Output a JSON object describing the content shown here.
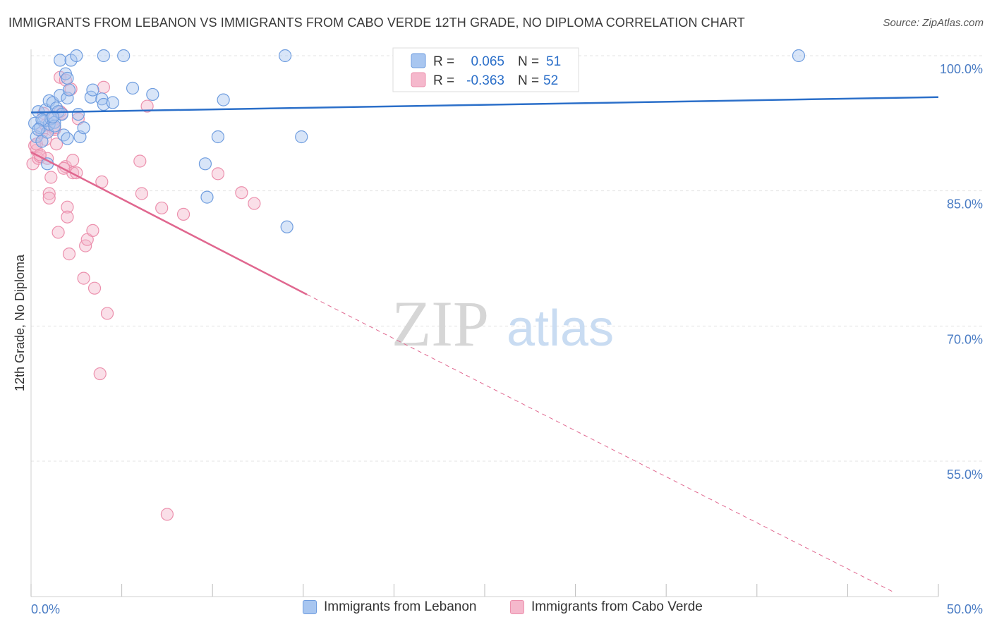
{
  "title": "IMMIGRANTS FROM LEBANON VS IMMIGRANTS FROM CABO VERDE 12TH GRADE, NO DIPLOMA CORRELATION CHART",
  "source": "Source: ZipAtlas.com",
  "watermark": {
    "zip": "ZIP",
    "atlas": "atlas"
  },
  "colors": {
    "blue_fill": "#a8c6f0",
    "blue_stroke": "#6f9ddf",
    "blue_line": "#2b6fc9",
    "pink_fill": "#f5b8cc",
    "pink_stroke": "#ec90ad",
    "pink_line": "#e0678f",
    "grid": "#e3e3e3",
    "axis_label": "#4a7cc4"
  },
  "legend": {
    "row1": {
      "r_label": "R = ",
      "r_value": "0.065",
      "n_label": "N = ",
      "n_value": "51"
    },
    "row2": {
      "r_label": "R = ",
      "r_value": "-0.363",
      "n_label": "N = ",
      "n_value": "52"
    }
  },
  "bottom_legend": {
    "series1": "Immigrants from Lebanon",
    "series2": "Immigrants from Cabo Verde"
  },
  "chart_data": {
    "type": "scatter",
    "title": "IMMIGRANTS FROM LEBANON VS IMMIGRANTS FROM CABO VERDE 12TH GRADE, NO DIPLOMA CORRELATION CHART",
    "xlabel": "",
    "ylabel": "12th Grade, No Diploma",
    "xlim": [
      0,
      50
    ],
    "ylim": [
      40.5,
      102
    ],
    "x_tick_labels": [
      "0.0%",
      "50.0%"
    ],
    "y_ticks": [
      100,
      85,
      70,
      55
    ],
    "y_tick_labels": [
      "100.0%",
      "85.0%",
      "70.0%",
      "55.0%"
    ],
    "series": [
      {
        "name": "Immigrants from Lebanon",
        "color": "#6f9ddf",
        "trend": {
          "x": [
            0,
            50
          ],
          "y": [
            93.7,
            95.4
          ],
          "dashed_from": null
        },
        "points": [
          [
            0.2,
            92.5
          ],
          [
            0.3,
            91.0
          ],
          [
            0.4,
            93.8
          ],
          [
            0.5,
            92.0
          ],
          [
            0.6,
            90.5
          ],
          [
            0.7,
            92.8
          ],
          [
            0.8,
            94.0
          ],
          [
            0.9,
            91.5
          ],
          [
            1.0,
            92.4
          ],
          [
            1.0,
            95.0
          ],
          [
            1.1,
            93.0
          ],
          [
            1.2,
            94.8
          ],
          [
            1.3,
            92.6
          ],
          [
            1.3,
            92.2
          ],
          [
            1.4,
            94.2
          ],
          [
            1.5,
            93.8
          ],
          [
            1.6,
            95.6
          ],
          [
            1.6,
            99.5
          ],
          [
            1.8,
            91.2
          ],
          [
            1.9,
            98.0
          ],
          [
            2.0,
            97.5
          ],
          [
            2.0,
            95.3
          ],
          [
            2.0,
            90.8
          ],
          [
            2.1,
            96.2
          ],
          [
            2.2,
            99.5
          ],
          [
            2.5,
            100.0
          ],
          [
            2.6,
            93.5
          ],
          [
            2.7,
            91.0
          ],
          [
            3.3,
            95.4
          ],
          [
            3.4,
            96.2
          ],
          [
            3.9,
            95.2
          ],
          [
            4.0,
            94.6
          ],
          [
            4.0,
            100.0
          ],
          [
            4.5,
            94.8
          ],
          [
            5.1,
            100.0
          ],
          [
            5.6,
            96.4
          ],
          [
            6.7,
            95.7
          ],
          [
            9.6,
            88.0
          ],
          [
            9.7,
            84.3
          ],
          [
            10.3,
            91.0
          ],
          [
            10.6,
            95.1
          ],
          [
            14.0,
            100.0
          ],
          [
            14.1,
            81.0
          ],
          [
            14.9,
            91.0
          ],
          [
            42.3,
            100.0
          ],
          [
            0.9,
            88.0
          ],
          [
            1.7,
            93.5
          ],
          [
            0.6,
            92.9
          ],
          [
            2.9,
            92.0
          ],
          [
            1.2,
            93.2
          ],
          [
            0.4,
            91.8
          ]
        ]
      },
      {
        "name": "Immigrants from Cabo Verde",
        "color": "#ec90ad",
        "trend": {
          "x": [
            0,
            15.2,
            47.5
          ],
          "y": [
            89.3,
            73.5,
            40.5
          ],
          "dashed_from": 15.2
        },
        "points": [
          [
            0.1,
            88.0
          ],
          [
            0.2,
            90.0
          ],
          [
            0.3,
            89.5
          ],
          [
            0.4,
            88.6
          ],
          [
            0.5,
            88.8
          ],
          [
            0.6,
            91.5
          ],
          [
            0.7,
            93.6
          ],
          [
            0.8,
            90.7
          ],
          [
            0.9,
            88.6
          ],
          [
            1.0,
            84.7
          ],
          [
            1.0,
            84.2
          ],
          [
            1.1,
            86.5
          ],
          [
            1.2,
            93.2
          ],
          [
            1.3,
            91.8
          ],
          [
            1.4,
            90.2
          ],
          [
            1.5,
            80.4
          ],
          [
            1.6,
            97.6
          ],
          [
            1.7,
            93.6
          ],
          [
            1.9,
            97.3
          ],
          [
            1.9,
            87.7
          ],
          [
            2.0,
            83.2
          ],
          [
            2.0,
            82.1
          ],
          [
            2.1,
            78.0
          ],
          [
            2.2,
            96.3
          ],
          [
            2.3,
            88.4
          ],
          [
            2.3,
            87.0
          ],
          [
            2.5,
            87.0
          ],
          [
            2.9,
            75.3
          ],
          [
            3.0,
            78.9
          ],
          [
            3.1,
            79.6
          ],
          [
            3.4,
            80.6
          ],
          [
            3.5,
            74.2
          ],
          [
            3.8,
            64.7
          ],
          [
            3.9,
            86.0
          ],
          [
            4.0,
            96.5
          ],
          [
            4.2,
            71.4
          ],
          [
            6.0,
            88.3
          ],
          [
            6.1,
            84.7
          ],
          [
            6.4,
            94.4
          ],
          [
            7.2,
            83.1
          ],
          [
            7.5,
            49.1
          ],
          [
            8.4,
            82.4
          ],
          [
            10.3,
            86.9
          ],
          [
            11.6,
            84.8
          ],
          [
            12.3,
            83.6
          ],
          [
            0.5,
            89.0
          ],
          [
            1.6,
            93.8
          ],
          [
            0.8,
            92.3
          ],
          [
            1.3,
            92.0
          ],
          [
            2.6,
            93.0
          ],
          [
            0.3,
            90.2
          ],
          [
            1.8,
            87.5
          ]
        ]
      }
    ]
  }
}
